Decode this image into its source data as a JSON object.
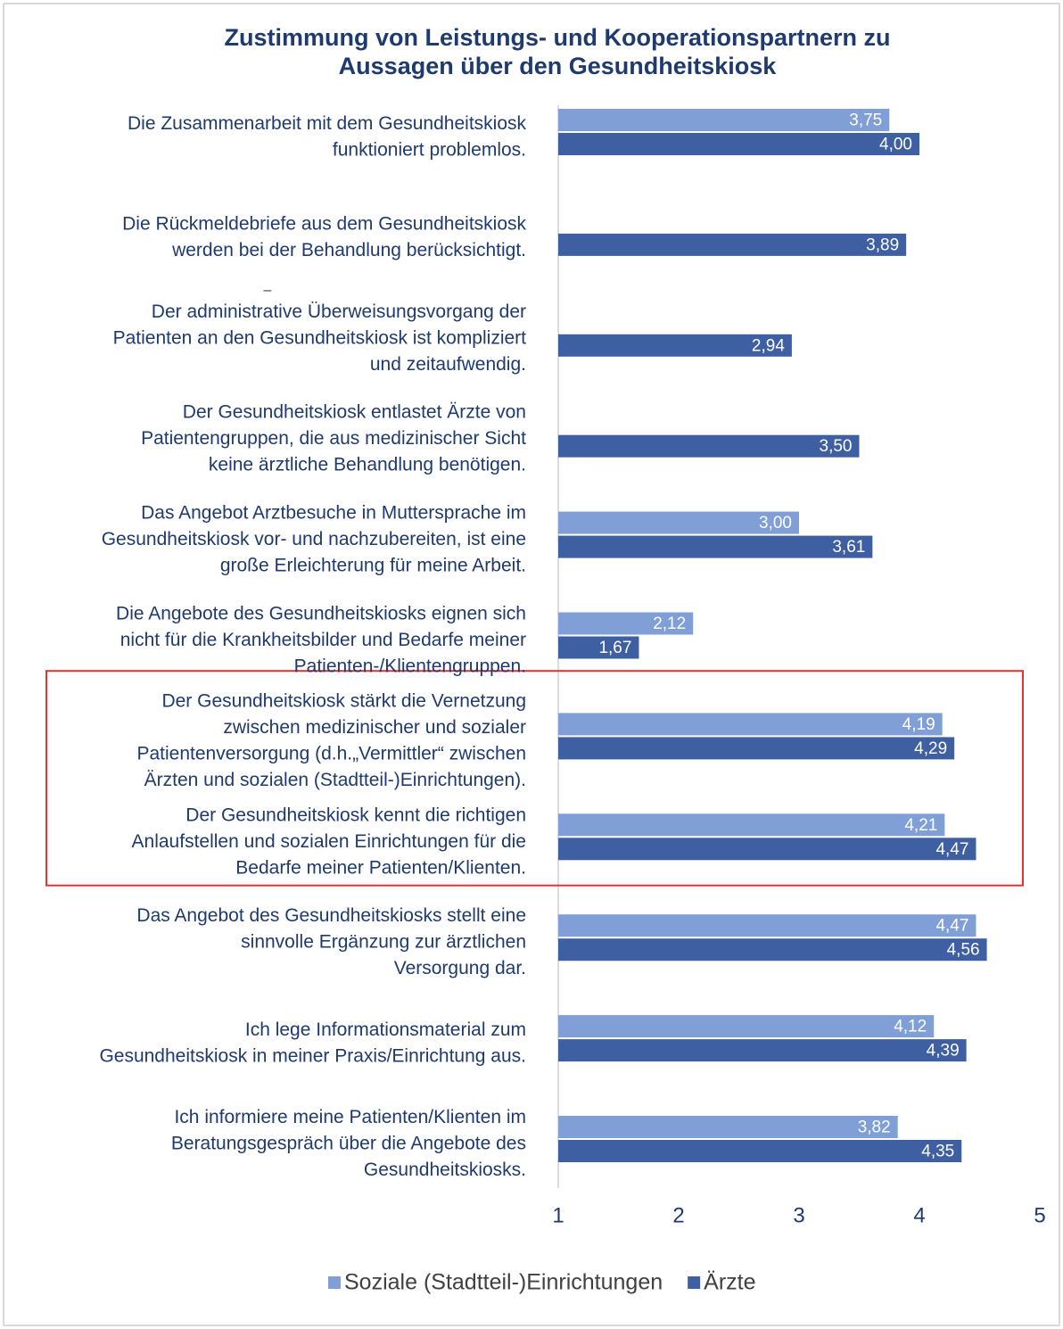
{
  "chart_data": {
    "type": "barh",
    "title": [
      "Zustimmung von Leistungs- und Kooperationspartnern zu",
      "Aussagen über den Gesundheitskiosk"
    ],
    "annotation": "–",
    "categories": [
      [
        "Die Zusammenarbeit mit dem Gesundheitskiosk",
        "funktioniert problemlos."
      ],
      [
        "Die Rückmeldebriefe aus dem Gesundheitskiosk",
        "werden bei der Behandlung berücksichtigt."
      ],
      [
        "Der administrative Überweisungsvorgang der",
        "Patienten an den Gesundheitskiosk ist kompliziert",
        "und zeitaufwendig."
      ],
      [
        "Der Gesundheitskiosk entlastet Ärzte von",
        "Patientengruppen, die aus medizinischer Sicht",
        "keine ärztliche Behandlung benötigen."
      ],
      [
        "Das Angebot Arztbesuche in Muttersprache im",
        "Gesundheitskiosk vor- und nachzubereiten, ist eine",
        "große Erleichterung für meine Arbeit."
      ],
      [
        "Die Angebote des Gesundheitskiosks eignen sich",
        "nicht für die Krankheitsbilder und Bedarfe meiner",
        "Patienten-/Klientengruppen."
      ],
      [
        "Der Gesundheitskiosk stärkt die Vernetzung",
        "zwischen medizinischer und sozialer",
        "Patientenversorgung (d.h.„Vermittler“ zwischen",
        "Ärzten und sozialen (Stadtteil-)Einrichtungen)."
      ],
      [
        "Der Gesundheitskiosk kennt die richtigen",
        "Anlaufstellen und sozialen Einrichtungen für die",
        "Bedarfe meiner Patienten/Klienten."
      ],
      [
        "Das Angebot des Gesundheitskiosks stellt eine",
        "sinnvolle Ergänzung zur ärztlichen",
        "Versorgung dar."
      ],
      [
        "Ich lege Informationsmaterial zum",
        "Gesundheitskiosk in meiner Praxis/Einrichtung aus."
      ],
      [
        "Ich informiere meine Patienten/Klienten im",
        "Beratungsgespräch über die Angebote des",
        "Gesundheitskiosks."
      ]
    ],
    "series": [
      {
        "name": "Soziale (Stadtteil-)Einrichtungen",
        "color": "#7f9fd6",
        "values": [
          3.75,
          null,
          null,
          null,
          3.0,
          2.12,
          4.19,
          4.21,
          4.47,
          4.12,
          3.82
        ],
        "value_labels": [
          "3,75",
          null,
          null,
          null,
          "3,00",
          "2,12",
          "4,19",
          "4,21",
          "4,47",
          "4,12",
          "3,82"
        ]
      },
      {
        "name": "Ärzte",
        "color": "#3f5fa3",
        "values": [
          4.0,
          3.89,
          2.94,
          3.5,
          3.61,
          1.67,
          4.29,
          4.47,
          4.56,
          4.39,
          4.35
        ],
        "value_labels": [
          "4,00",
          "3,89",
          "2,94",
          "3,50",
          "3,61",
          "1,67",
          "4,29",
          "4,47",
          "4,56",
          "4,39",
          "4,35"
        ]
      }
    ],
    "xlim": [
      1,
      5
    ],
    "xticks": [
      1,
      2,
      3,
      4,
      5
    ],
    "highlight": {
      "categories": [
        6,
        7
      ],
      "color": "#e03333"
    },
    "legend": "bottom"
  }
}
